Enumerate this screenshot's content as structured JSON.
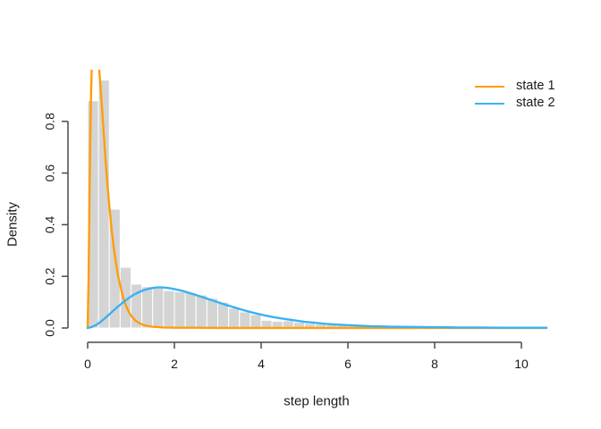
{
  "chart_data": {
    "type": "histogram+line",
    "title": "",
    "xlabel": "step length",
    "ylabel": "Density",
    "x_ticks": [
      0,
      2,
      4,
      6,
      8,
      10
    ],
    "y_ticks": [
      "0.0",
      "0.2",
      "0.4",
      "0.6",
      "0.8"
    ],
    "xlim": [
      -0.1,
      10.7
    ],
    "ylim": [
      -0.05,
      1.0
    ],
    "grid": false,
    "legend_position": "top-right",
    "axis_color": "#4a4a4a",
    "text_color": "#1a1a1a",
    "histogram": {
      "bin_start": 0,
      "bin_width": 0.25,
      "fill": "#d4d4d4",
      "border": "#ffffff",
      "densities": [
        0.88,
        0.96,
        0.46,
        0.235,
        0.17,
        0.16,
        0.155,
        0.145,
        0.14,
        0.138,
        0.128,
        0.115,
        0.1,
        0.077,
        0.062,
        0.052,
        0.03,
        0.026,
        0.028,
        0.022,
        0.018,
        0.015,
        0.012,
        0.01,
        0.008,
        0.007,
        0.005,
        0.004,
        0.003,
        0.002,
        0.002,
        0.001,
        0.001,
        0.001,
        0,
        0,
        0,
        0,
        0,
        0,
        0,
        0.001
      ]
    },
    "series": [
      {
        "name": "state 1",
        "color": "#ff9d0b",
        "clipped_at_top": true,
        "points": [
          [
            0,
            0
          ],
          [
            0.02,
            0.18
          ],
          [
            0.04,
            0.45
          ],
          [
            0.06,
            0.72
          ],
          [
            0.08,
            0.92
          ],
          [
            0.1,
            1.04
          ],
          [
            0.13,
            1.13
          ],
          [
            0.16,
            1.16
          ],
          [
            0.2,
            1.14
          ],
          [
            0.24,
            1.06
          ],
          [
            0.28,
            0.97
          ],
          [
            0.32,
            0.88
          ],
          [
            0.36,
            0.78
          ],
          [
            0.4,
            0.68
          ],
          [
            0.45,
            0.57
          ],
          [
            0.5,
            0.47
          ],
          [
            0.55,
            0.385
          ],
          [
            0.6,
            0.315
          ],
          [
            0.65,
            0.255
          ],
          [
            0.7,
            0.205
          ],
          [
            0.75,
            0.165
          ],
          [
            0.8,
            0.13
          ],
          [
            0.85,
            0.102
          ],
          [
            0.9,
            0.08
          ],
          [
            0.95,
            0.062
          ],
          [
            1.0,
            0.048
          ],
          [
            1.1,
            0.029
          ],
          [
            1.2,
            0.018
          ],
          [
            1.3,
            0.011
          ],
          [
            1.4,
            0.007
          ],
          [
            1.5,
            0.005
          ],
          [
            1.75,
            0.002
          ],
          [
            2.0,
            0.001
          ],
          [
            2.5,
            0.001
          ],
          [
            3.0,
            0.0005
          ],
          [
            10.58,
            0.0005
          ]
        ]
      },
      {
        "name": "state 2",
        "color": "#3ab1f3",
        "clipped_at_top": false,
        "points": [
          [
            0,
            0
          ],
          [
            0.1,
            0.004
          ],
          [
            0.2,
            0.012
          ],
          [
            0.3,
            0.024
          ],
          [
            0.4,
            0.038
          ],
          [
            0.5,
            0.053
          ],
          [
            0.6,
            0.068
          ],
          [
            0.7,
            0.083
          ],
          [
            0.8,
            0.097
          ],
          [
            0.9,
            0.11
          ],
          [
            1.0,
            0.122
          ],
          [
            1.1,
            0.132
          ],
          [
            1.2,
            0.14
          ],
          [
            1.3,
            0.147
          ],
          [
            1.4,
            0.152
          ],
          [
            1.5,
            0.155
          ],
          [
            1.6,
            0.157
          ],
          [
            1.7,
            0.157
          ],
          [
            1.8,
            0.156
          ],
          [
            1.9,
            0.154
          ],
          [
            2.0,
            0.151
          ],
          [
            2.2,
            0.143
          ],
          [
            2.4,
            0.133
          ],
          [
            2.6,
            0.122
          ],
          [
            2.8,
            0.111
          ],
          [
            3.0,
            0.1
          ],
          [
            3.2,
            0.089
          ],
          [
            3.4,
            0.079
          ],
          [
            3.6,
            0.069
          ],
          [
            3.8,
            0.06
          ],
          [
            4.0,
            0.052
          ],
          [
            4.25,
            0.043
          ],
          [
            4.5,
            0.036
          ],
          [
            4.75,
            0.03
          ],
          [
            5.0,
            0.024
          ],
          [
            5.25,
            0.02
          ],
          [
            5.5,
            0.016
          ],
          [
            5.75,
            0.013
          ],
          [
            6.0,
            0.011
          ],
          [
            6.5,
            0.007
          ],
          [
            7.0,
            0.005
          ],
          [
            7.5,
            0.004
          ],
          [
            8.0,
            0.003
          ],
          [
            8.5,
            0.002
          ],
          [
            9.0,
            0.002
          ],
          [
            9.5,
            0.001
          ],
          [
            10.0,
            0.001
          ],
          [
            10.58,
            0.001
          ]
        ]
      }
    ]
  }
}
